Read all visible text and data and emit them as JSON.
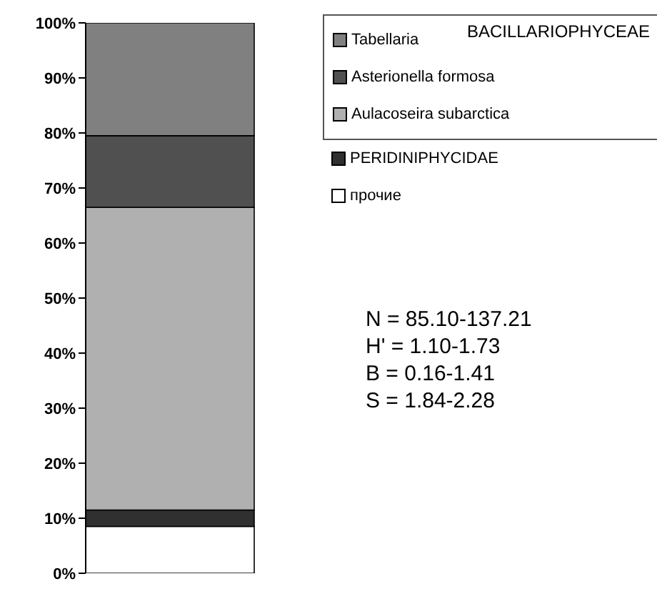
{
  "chart_data": {
    "type": "bar",
    "stacked": true,
    "categories": [
      null
    ],
    "tick_labels": "y",
    "legend": "top right",
    "legend_title": "BACILLARIOPHYCEAE",
    "ylim": [
      0,
      100
    ],
    "yticks": [
      {
        "value": 0,
        "label": "0%"
      },
      {
        "value": 10,
        "label": "10%"
      },
      {
        "value": 20,
        "label": "20%"
      },
      {
        "value": 30,
        "label": "30%"
      },
      {
        "value": 40,
        "label": "40%"
      },
      {
        "value": 50,
        "label": "50%"
      },
      {
        "value": 60,
        "label": "60%"
      },
      {
        "value": 70,
        "label": "70%"
      },
      {
        "value": 80,
        "label": "80%"
      },
      {
        "value": 90,
        "label": "90%"
      },
      {
        "value": 100,
        "label": "100%"
      }
    ],
    "series": [
      {
        "name": "прочие",
        "color": "#ffffff",
        "values": [
          8.5
        ]
      },
      {
        "name": "PERIDINIPHYCIDAE",
        "color": "#303030",
        "values": [
          3
        ]
      },
      {
        "name": "Aulacoseira subarctica",
        "color": "#b0b0b0",
        "values": [
          55
        ]
      },
      {
        "name": "Asterionella formosa",
        "color": "#505050",
        "values": [
          13
        ]
      },
      {
        "name": "Tabellaria",
        "color": "#808080",
        "values": [
          20.5
        ]
      }
    ],
    "annotations": [
      "N = 85.10-137.21",
      "H' = 1.10-1.73",
      "B = 0.16-1.41",
      "S = 1.84-2.28"
    ]
  }
}
